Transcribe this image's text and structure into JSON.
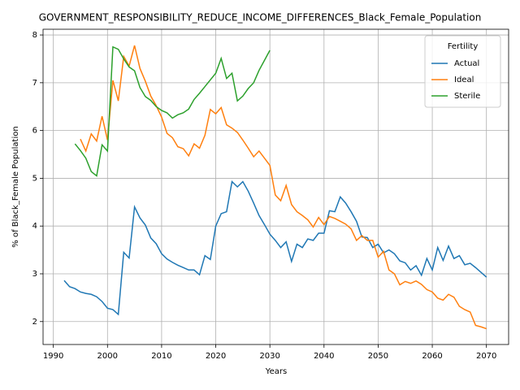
{
  "chart_data": {
    "type": "line",
    "title": "GOVERNMENT_RESPONSIBILITY_REDUCE_INCOME_DIFFERENCES_Black_Female_Population",
    "xlabel": "Years",
    "ylabel": "% of Black_Female Population",
    "legend_title": "Fertility",
    "legend": "upper right",
    "grid": true,
    "xlim": [
      1988.1,
      2074.1
    ],
    "ylim": [
      1.52,
      8.12
    ],
    "xticks": [
      1990,
      2000,
      2010,
      2020,
      2030,
      2040,
      2050,
      2060,
      2070
    ],
    "yticks": [
      2,
      3,
      4,
      5,
      6,
      7,
      8
    ],
    "x": [
      1992,
      1993,
      1994,
      1995,
      1996,
      1997,
      1998,
      1999,
      2000,
      2001,
      2002,
      2003,
      2004,
      2005,
      2006,
      2007,
      2008,
      2009,
      2010,
      2011,
      2012,
      2013,
      2014,
      2015,
      2016,
      2017,
      2018,
      2019,
      2020,
      2021,
      2022,
      2023,
      2024,
      2025,
      2026,
      2027,
      2028,
      2029,
      2030,
      2031,
      2032,
      2033,
      2034,
      2035,
      2036,
      2037,
      2038,
      2039,
      2040,
      2041,
      2042,
      2043,
      2044,
      2045,
      2046,
      2047,
      2048,
      2049,
      2050,
      2051,
      2052,
      2053,
      2054,
      2055,
      2056,
      2057,
      2058,
      2059,
      2060,
      2061,
      2062,
      2063,
      2064,
      2065,
      2066,
      2067,
      2068,
      2069,
      2070
    ],
    "series": [
      {
        "name": "Actual",
        "color": "#1f77b4",
        "values": [
          2.86,
          2.73,
          2.69,
          2.62,
          2.59,
          2.57,
          2.52,
          2.42,
          2.28,
          2.25,
          2.15,
          3.45,
          3.33,
          4.4,
          4.17,
          4.02,
          3.75,
          3.63,
          3.42,
          3.31,
          3.24,
          3.18,
          3.13,
          3.08,
          3.08,
          2.98,
          3.38,
          3.3,
          4.0,
          4.26,
          4.3,
          4.93,
          4.82,
          4.93,
          4.73,
          4.48,
          4.22,
          4.03,
          3.83,
          3.7,
          3.55,
          3.67,
          3.26,
          3.62,
          3.55,
          3.73,
          3.7,
          3.85,
          3.85,
          4.32,
          4.3,
          4.61,
          4.48,
          4.3,
          4.1,
          3.77,
          3.76,
          3.55,
          3.62,
          3.44,
          3.5,
          3.42,
          3.27,
          3.23,
          3.08,
          3.17,
          2.97,
          3.32,
          3.08,
          3.55,
          3.28,
          3.58,
          3.32,
          3.38,
          3.19,
          3.22,
          3.13,
          3.03,
          2.93
        ]
      },
      {
        "name": "Ideal",
        "color": "#ff7f0e",
        "values": [
          null,
          null,
          null,
          5.82,
          5.57,
          5.93,
          5.78,
          6.3,
          5.8,
          7.05,
          6.62,
          7.55,
          7.35,
          7.78,
          7.3,
          7.03,
          6.72,
          6.52,
          6.28,
          5.94,
          5.85,
          5.66,
          5.62,
          5.47,
          5.72,
          5.63,
          5.9,
          6.44,
          6.35,
          6.48,
          6.12,
          6.05,
          5.96,
          5.8,
          5.63,
          5.45,
          5.57,
          5.42,
          5.27,
          4.65,
          4.53,
          4.85,
          4.45,
          4.3,
          4.22,
          4.13,
          3.98,
          4.18,
          4.03,
          4.2,
          4.16,
          4.1,
          4.04,
          3.94,
          3.7,
          3.8,
          3.7,
          3.7,
          3.35,
          3.47,
          3.08,
          3.0,
          2.77,
          2.84,
          2.8,
          2.85,
          2.78,
          2.67,
          2.62,
          2.49,
          2.45,
          2.57,
          2.51,
          2.32,
          2.25,
          2.2,
          1.92,
          1.89,
          1.85
        ]
      },
      {
        "name": "Sterile",
        "color": "#2ca02c",
        "values": [
          null,
          null,
          5.72,
          5.58,
          5.42,
          5.14,
          5.05,
          5.7,
          5.57,
          7.75,
          7.7,
          7.5,
          7.33,
          7.25,
          6.9,
          6.71,
          6.63,
          6.5,
          6.42,
          6.37,
          6.26,
          6.33,
          6.37,
          6.45,
          6.65,
          6.78,
          6.92,
          7.06,
          7.2,
          7.51,
          7.09,
          7.2,
          6.62,
          6.72,
          6.88,
          7.0,
          7.26,
          7.47,
          7.68,
          null,
          null,
          null,
          null,
          null,
          null,
          null,
          null,
          null,
          null,
          null,
          null,
          null,
          null,
          null,
          null,
          null,
          null,
          null,
          null,
          null,
          null,
          null,
          null,
          null,
          null,
          null,
          null,
          null,
          null,
          null,
          null,
          null,
          null,
          null,
          null,
          null,
          null,
          null,
          null
        ]
      }
    ]
  }
}
